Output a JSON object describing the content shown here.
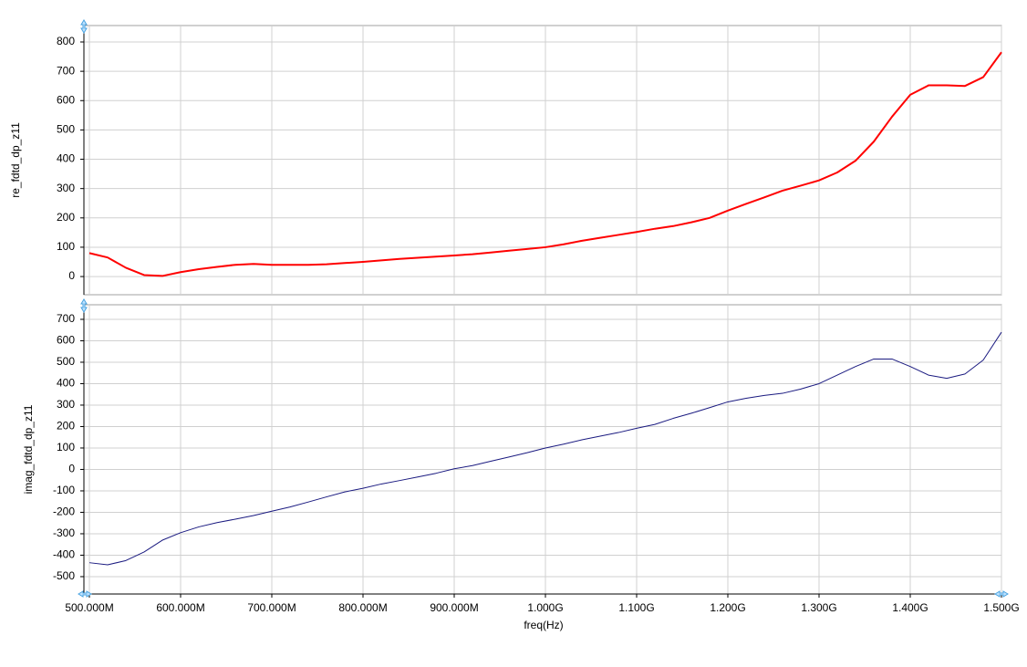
{
  "chart_data": {
    "type": "line",
    "xlabel": "freq(Hz)",
    "grid": true,
    "x": [
      500000000,
      520000000,
      540000000,
      560000000,
      580000000,
      600000000,
      620000000,
      640000000,
      660000000,
      680000000,
      700000000,
      720000000,
      740000000,
      760000000,
      780000000,
      800000000,
      820000000,
      840000000,
      860000000,
      880000000,
      900000000,
      920000000,
      940000000,
      960000000,
      980000000,
      1000000000,
      1020000000,
      1040000000,
      1060000000,
      1080000000,
      1100000000,
      1120000000,
      1140000000,
      1160000000,
      1180000000,
      1200000000,
      1220000000,
      1240000000,
      1260000000,
      1280000000,
      1300000000,
      1320000000,
      1340000000,
      1360000000,
      1380000000,
      1400000000,
      1420000000,
      1440000000,
      1460000000,
      1480000000,
      1500000000
    ],
    "xlim": [
      494000000,
      1500000000
    ],
    "xticks": [
      {
        "value": 500000000,
        "label": "500.000M"
      },
      {
        "value": 600000000,
        "label": "600.000M"
      },
      {
        "value": 700000000,
        "label": "700.000M"
      },
      {
        "value": 800000000,
        "label": "800.000M"
      },
      {
        "value": 900000000,
        "label": "900.000M"
      },
      {
        "value": 1000000000,
        "label": "1.000G"
      },
      {
        "value": 1100000000,
        "label": "1.100G"
      },
      {
        "value": 1200000000,
        "label": "1.200G"
      },
      {
        "value": 1300000000,
        "label": "1.300G"
      },
      {
        "value": 1400000000,
        "label": "1.400G"
      },
      {
        "value": 1500000000,
        "label": "1.500G"
      }
    ],
    "series": [
      {
        "name": "re_fdtd_dp_z11",
        "color": "#ff0000",
        "ylim": [
          -62,
          856
        ],
        "yticks": [
          0,
          100,
          200,
          300,
          400,
          500,
          600,
          700,
          800
        ],
        "values": [
          80,
          65,
          30,
          5,
          2,
          15,
          25,
          33,
          40,
          43,
          40,
          40,
          40,
          42,
          46,
          50,
          55,
          60,
          64,
          68,
          72,
          76,
          82,
          88,
          94,
          100,
          110,
          122,
          132,
          142,
          152,
          163,
          172,
          185,
          200,
          225,
          248,
          270,
          293,
          310,
          328,
          355,
          395,
          460,
          545,
          620,
          652,
          652,
          650,
          680,
          765
        ]
      },
      {
        "name": "imag_fdtd_dp_z11",
        "color": "#1a1a80",
        "ylim": [
          -581,
          768
        ],
        "yticks": [
          -500,
          -400,
          -300,
          -200,
          -100,
          0,
          100,
          200,
          300,
          400,
          500,
          600,
          700
        ],
        "values": [
          -435,
          -445,
          -425,
          -385,
          -330,
          -295,
          -268,
          -248,
          -232,
          -215,
          -195,
          -175,
          -152,
          -128,
          -105,
          -88,
          -68,
          -52,
          -35,
          -18,
          3,
          18,
          38,
          58,
          78,
          100,
          118,
          138,
          155,
          172,
          192,
          210,
          238,
          262,
          288,
          315,
          332,
          345,
          355,
          375,
          400,
          440,
          480,
          515,
          515,
          480,
          440,
          425,
          445,
          510,
          640
        ]
      }
    ]
  }
}
